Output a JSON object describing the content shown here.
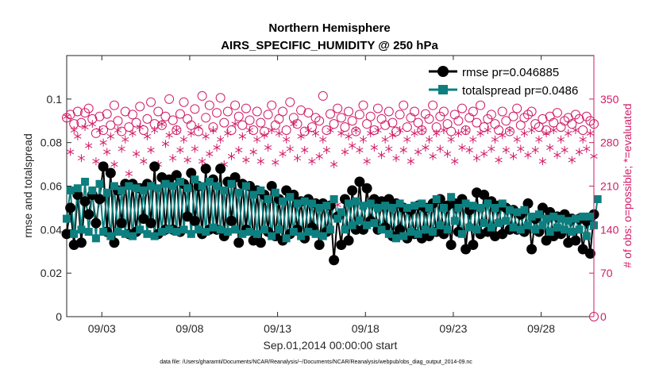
{
  "chart_data": {
    "type": "line",
    "title": "Northern Hemisphere",
    "subtitle": "AIRS_SPECIFIC_HUMIDITY @ 250 hPa",
    "xlabel": "Sep.01,2014 00:00:00 start",
    "ylabel_left": "rmse and totalspread",
    "ylabel_right": "# of obs: o=possible; *=evaluated",
    "footnote": "data file: /Users/gharamti/Documents/NCAR/Reanalysis/~/Documents/NCAR/Reanalysis/webpub/obs_diag_output_2014-09.nc",
    "x_range_days": [
      1.0,
      31.0
    ],
    "x_ticks": [
      {
        "day": 3,
        "label": "09/03"
      },
      {
        "day": 8,
        "label": "09/08"
      },
      {
        "day": 13,
        "label": "09/13"
      },
      {
        "day": 18,
        "label": "09/18"
      },
      {
        "day": 23,
        "label": "09/23"
      },
      {
        "day": 28,
        "label": "09/28"
      }
    ],
    "ylim_left": [
      0,
      0.12
    ],
    "left_ticks": [
      "0",
      "0.02",
      "0.04",
      "0.06",
      "0.08",
      "0.1"
    ],
    "ylim_right": [
      0,
      420
    ],
    "right_ticks": [
      "0",
      "70",
      "140",
      "210",
      "280",
      "350"
    ],
    "legend_position": "top-right",
    "colors": {
      "rmse": "#000000",
      "totalspread": "#0e7f7f",
      "obs": "#d11b67",
      "axis": "#262626"
    },
    "series": [
      {
        "name": "rmse pr=0.046885",
        "key": "rmse",
        "values": [
          0.038,
          0.05,
          0.033,
          0.056,
          0.034,
          0.053,
          0.047,
          0.056,
          0.043,
          0.054,
          0.069,
          0.039,
          0.066,
          0.034,
          0.058,
          0.043,
          0.061,
          0.038,
          0.061,
          0.039,
          0.059,
          0.045,
          0.061,
          0.043,
          0.069,
          0.038,
          0.064,
          0.04,
          0.063,
          0.04,
          0.065,
          0.039,
          0.061,
          0.046,
          0.066,
          0.044,
          0.06,
          0.038,
          0.068,
          0.04,
          0.063,
          0.04,
          0.068,
          0.037,
          0.062,
          0.044,
          0.064,
          0.034,
          0.061,
          0.04,
          0.06,
          0.035,
          0.058,
          0.034,
          0.056,
          0.039,
          0.06,
          0.037,
          0.054,
          0.035,
          0.058,
          0.038,
          0.056,
          0.04,
          0.053,
          0.036,
          0.054,
          0.041,
          0.052,
          0.033,
          0.052,
          0.039,
          0.051,
          0.026,
          0.046,
          0.033,
          0.054,
          0.035,
          0.058,
          0.04,
          0.062,
          0.04,
          0.059,
          0.044,
          0.054,
          0.04,
          0.053,
          0.041,
          0.054,
          0.037,
          0.052,
          0.04,
          0.05,
          0.036,
          0.049,
          0.038,
          0.051,
          0.036,
          0.05,
          0.037,
          0.052,
          0.039,
          0.054,
          0.038,
          0.051,
          0.033,
          0.052,
          0.039,
          0.054,
          0.031,
          0.049,
          0.033,
          0.057,
          0.038,
          0.056,
          0.039,
          0.053,
          0.037,
          0.051,
          0.038,
          0.05,
          0.04,
          0.049,
          0.04,
          0.047,
          0.039,
          0.052,
          0.031,
          0.045,
          0.039,
          0.05,
          0.035,
          0.048,
          0.037,
          0.046,
          0.038,
          0.047,
          0.034,
          0.045,
          0.035,
          0.045,
          0.031,
          0.044,
          0.029,
          0.047
        ]
      },
      {
        "name": "totalspread pr=0.0486",
        "key": "totalspread",
        "values": [
          0.045,
          0.058,
          0.038,
          0.059,
          0.04,
          0.062,
          0.039,
          0.058,
          0.036,
          0.061,
          0.039,
          0.057,
          0.037,
          0.06,
          0.039,
          0.058,
          0.038,
          0.06,
          0.037,
          0.059,
          0.04,
          0.058,
          0.038,
          0.06,
          0.037,
          0.059,
          0.039,
          0.061,
          0.04,
          0.06,
          0.039,
          0.062,
          0.04,
          0.059,
          0.038,
          0.063,
          0.04,
          0.06,
          0.039,
          0.062,
          0.041,
          0.06,
          0.04,
          0.058,
          0.039,
          0.061,
          0.04,
          0.057,
          0.038,
          0.06,
          0.039,
          0.056,
          0.038,
          0.058,
          0.04,
          0.054,
          0.037,
          0.057,
          0.04,
          0.053,
          0.036,
          0.055,
          0.039,
          0.052,
          0.037,
          0.053,
          0.039,
          0.052,
          0.038,
          0.05,
          0.037,
          0.051,
          0.04,
          0.054,
          0.045,
          0.048,
          0.04,
          0.052,
          0.042,
          0.053,
          0.044,
          0.051,
          0.042,
          0.052,
          0.043,
          0.05,
          0.04,
          0.051,
          0.038,
          0.05,
          0.036,
          0.052,
          0.037,
          0.05,
          0.039,
          0.051,
          0.038,
          0.052,
          0.04,
          0.05,
          0.039,
          0.054,
          0.042,
          0.05,
          0.04,
          0.055,
          0.044,
          0.05,
          0.038,
          0.052,
          0.041,
          0.051,
          0.04,
          0.05,
          0.043,
          0.052,
          0.041,
          0.05,
          0.043,
          0.052,
          0.044,
          0.049,
          0.041,
          0.048,
          0.04,
          0.049,
          0.042,
          0.046,
          0.04,
          0.047,
          0.042,
          0.045,
          0.039,
          0.046,
          0.041,
          0.045,
          0.04,
          0.044,
          0.039,
          0.045,
          0.04,
          0.046,
          0.037,
          0.046,
          0.042,
          0.054
        ]
      },
      {
        "name": "possible",
        "key": "possible",
        "values": [
          320,
          325,
          310,
          330,
          312,
          328,
          335,
          318,
          295,
          322,
          300,
          326,
          308,
          340,
          315,
          298,
          330,
          305,
          325,
          312,
          338,
          300,
          318,
          345,
          310,
          330,
          308,
          322,
          350,
          316,
          300,
          326,
          345,
          318,
          308,
          334,
          298,
          355,
          320,
          340,
          305,
          328,
          352,
          312,
          330,
          300,
          340,
          322,
          308,
          335,
          316,
          300,
          330,
          312,
          298,
          325,
          340,
          308,
          318,
          330,
          300,
          345,
          320,
          310,
          332,
          298,
          328,
          305,
          320,
          315,
          355,
          300,
          326,
          310,
          335,
          320,
          305,
          330,
          315,
          298,
          325,
          340,
          310,
          322,
          300,
          335,
          318,
          308,
          330,
          312,
          298,
          325,
          340,
          305,
          320,
          330,
          312,
          300,
          326,
          318,
          340,
          305,
          322,
          330,
          310,
          298,
          325,
          315,
          335,
          300,
          320,
          330,
          312,
          340,
          305,
          318,
          325,
          310,
          300,
          330,
          315,
          298,
          322,
          335,
          308,
          320,
          325,
          330,
          310,
          305,
          318,
          300,
          322,
          312,
          328,
          305,
          315,
          320,
          310,
          325,
          318,
          300,
          322,
          315,
          310
        ]
      },
      {
        "name": "evaluated",
        "key": "evaluated",
        "values": [
          322,
          265,
          300,
          290,
          255,
          305,
          275,
          310,
          250,
          300,
          280,
          265,
          290,
          245,
          300,
          270,
          285,
          230,
          295,
          262,
          305,
          250,
          290,
          268,
          300,
          245,
          310,
          278,
          292,
          255,
          300,
          268,
          285,
          252,
          295,
          270,
          305,
          250,
          290,
          262,
          300,
          272,
          285,
          245,
          295,
          258,
          310,
          268,
          290,
          252,
          300,
          265,
          285,
          250,
          292,
          272,
          300,
          248,
          295,
          262,
          285,
          270,
          310,
          255,
          290,
          268,
          300,
          250,
          295,
          258,
          285,
          268,
          300,
          245,
          180,
          295,
          265,
          290,
          275,
          300,
          268,
          285,
          250,
          295,
          272,
          300,
          260,
          285,
          270,
          292,
          255,
          300,
          268,
          285,
          250,
          295,
          265,
          300,
          272,
          285,
          258,
          295,
          270,
          300,
          262,
          285,
          250,
          295,
          272,
          300,
          268,
          285,
          255,
          295,
          262,
          300,
          270,
          285,
          252,
          292,
          268,
          300,
          258,
          285,
          270,
          295,
          260,
          300,
          268,
          285,
          250,
          295,
          272,
          300,
          260,
          285,
          268,
          295,
          252,
          300,
          265,
          285,
          270,
          295,
          258
        ]
      }
    ]
  }
}
